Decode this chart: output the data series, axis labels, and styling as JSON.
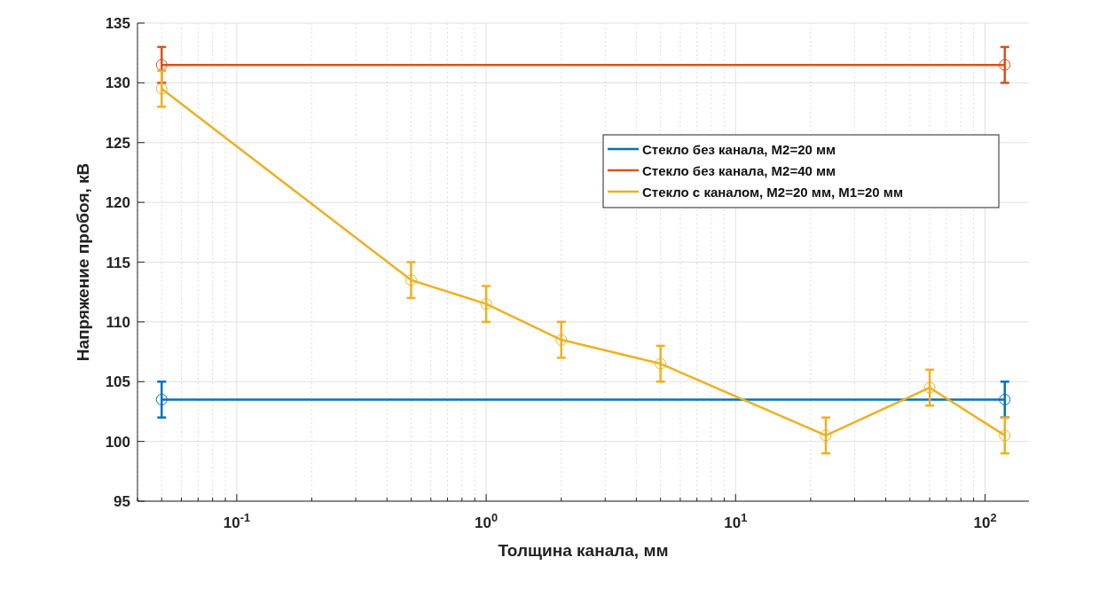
{
  "chart_data": {
    "type": "line",
    "xlabel": "Толщина канала, мм",
    "ylabel": "Напряжение пробоя, кВ",
    "log": "x",
    "grid": true,
    "legend": "top right",
    "marker": "circle",
    "line_style": "solid",
    "xlim": [
      0.04,
      150
    ],
    "xticks": [
      {
        "value": 0.1,
        "label": "10$^{-1}$"
      },
      {
        "value": 1,
        "label": "10$^{0}$"
      },
      {
        "value": 10,
        "label": "10$^{1}$"
      },
      {
        "value": 100,
        "label": "10$^{2}$"
      }
    ],
    "ylim": [
      95,
      135
    ],
    "yticks": [
      95,
      100,
      105,
      110,
      115,
      120,
      125,
      130,
      135
    ],
    "series": [
      {
        "name": "Стекло без канала, M2=20 мм",
        "color": "#0072bd",
        "x": [
          0.05,
          120
        ],
        "values": [
          103.5,
          103.5
        ],
        "errors": [
          1.5,
          1.5
        ]
      },
      {
        "name": "Стекло без канала, M2=40 мм",
        "color": "#d95319",
        "x": [
          0.05,
          120
        ],
        "values": [
          131.5,
          131.5
        ],
        "errors": [
          1.5,
          1.5
        ]
      },
      {
        "name": "Стекло с каналом, M2=20 мм, M1=20 мм",
        "color": "#edb120",
        "x": [
          0.05,
          0.5,
          1,
          2,
          5,
          23,
          60,
          120
        ],
        "values": [
          129.5,
          113.5,
          111.5,
          108.5,
          106.5,
          100.5,
          104.5,
          100.5
        ],
        "errors": [
          1.5,
          1.5,
          1.5,
          1.5,
          1.5,
          1.5,
          1.5,
          1.5
        ]
      }
    ]
  }
}
